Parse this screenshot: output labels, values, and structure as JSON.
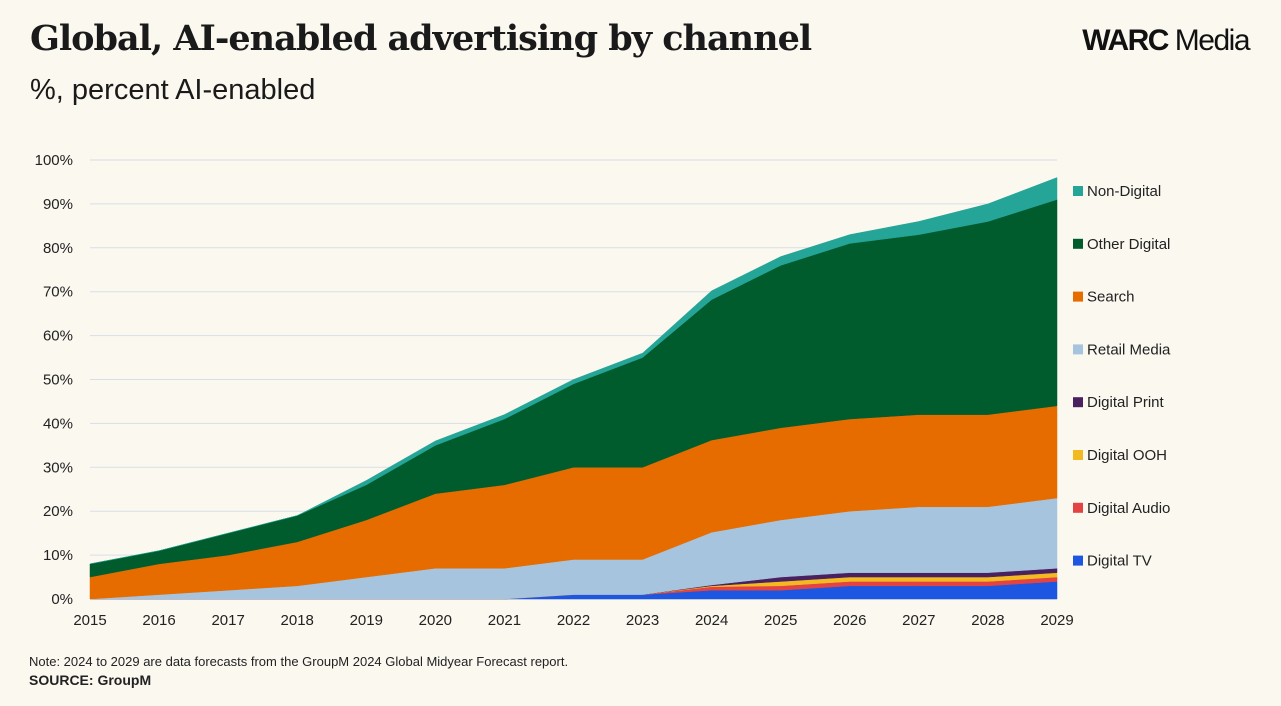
{
  "header": {
    "title": "Global, AI-enabled advertising by channel",
    "subtitle": "%, percent AI-enabled",
    "brand_bold": "WARC",
    "brand_light": " Media"
  },
  "footer": {
    "note": "Note: 2024 to 2029 are data forecasts from the GroupM 2024 Global Midyear Forecast report.",
    "source": "SOURCE: GroupM"
  },
  "chart_data": {
    "type": "area",
    "stacked": true,
    "x": [
      2015,
      2016,
      2017,
      2018,
      2019,
      2020,
      2021,
      2022,
      2023,
      2024,
      2025,
      2026,
      2027,
      2028,
      2029
    ],
    "ylim": [
      0,
      100
    ],
    "yticks": [
      "0%",
      "10%",
      "20%",
      "30%",
      "40%",
      "50%",
      "60%",
      "70%",
      "80%",
      "90%",
      "100%"
    ],
    "grid": true,
    "legend_position": "right",
    "series": [
      {
        "name": "Digital TV",
        "color": "#1d56e0",
        "values": [
          0,
          0,
          0,
          0,
          0,
          0,
          0,
          1,
          1,
          2,
          2,
          3,
          3,
          3,
          4
        ]
      },
      {
        "name": "Digital Audio",
        "color": "#e34343",
        "values": [
          0,
          0,
          0,
          0,
          0,
          0,
          0,
          0,
          0,
          0.8,
          1,
          1,
          1,
          1,
          1
        ]
      },
      {
        "name": "Digital OOH",
        "color": "#f2b920",
        "values": [
          0,
          0,
          0,
          0,
          0,
          0,
          0,
          0,
          0,
          0.2,
          1,
          1,
          1,
          1,
          1
        ]
      },
      {
        "name": "Digital Print",
        "color": "#4a2160",
        "values": [
          0,
          0,
          0,
          0,
          0,
          0,
          0,
          0,
          0,
          0.2,
          1,
          1,
          1,
          1,
          1
        ]
      },
      {
        "name": "Retail Media",
        "color": "#a7c4de",
        "values": [
          0,
          1,
          2,
          3,
          5,
          7,
          7,
          8,
          8,
          12,
          13,
          14,
          15,
          15,
          16
        ]
      },
      {
        "name": "Search",
        "color": "#e66c00",
        "values": [
          5,
          7,
          8,
          10,
          13,
          17,
          19,
          21,
          21,
          21,
          21,
          21,
          21,
          21,
          21
        ]
      },
      {
        "name": "Other Digital",
        "color": "#005c2d",
        "values": [
          3,
          3,
          5,
          6,
          8,
          11,
          15,
          19,
          25,
          32,
          37,
          40,
          41,
          44,
          47
        ]
      },
      {
        "name": "Non-Digital",
        "color": "#24a597",
        "values": [
          0,
          0,
          0,
          0,
          1,
          1,
          1,
          1,
          1,
          2,
          2,
          2,
          3,
          4,
          5
        ]
      }
    ]
  }
}
